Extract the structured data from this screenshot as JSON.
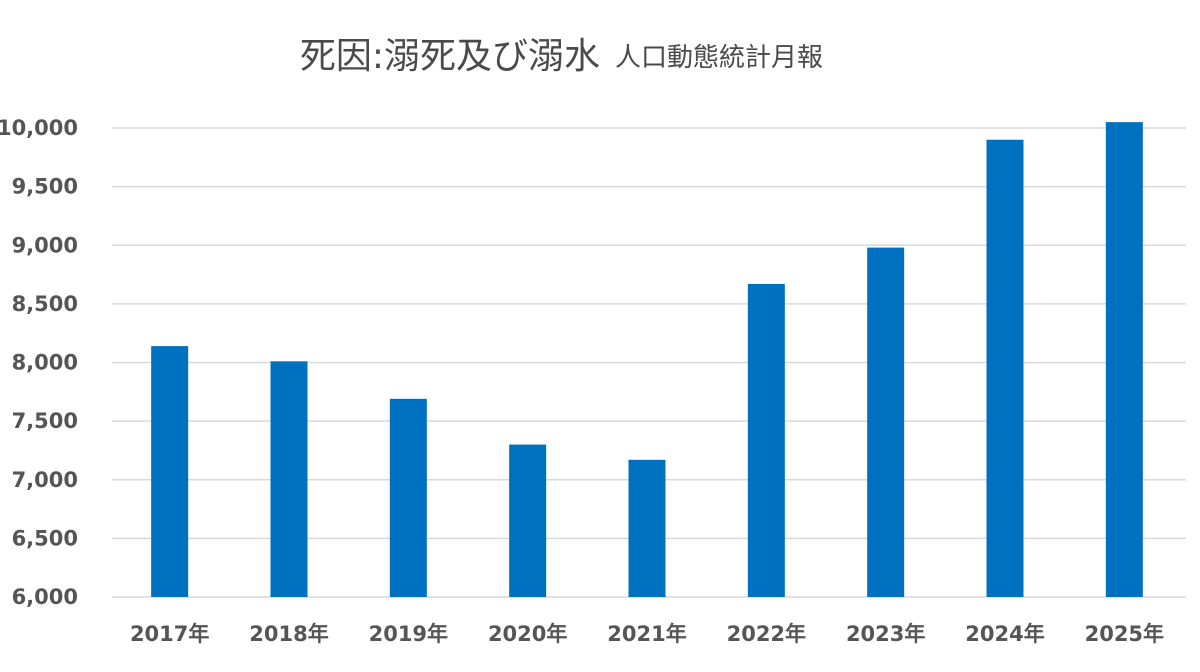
{
  "chart_data": {
    "type": "bar",
    "title": "死因:溺死及び溺水",
    "subtitle": "人口動態統計月報",
    "xlabel": "",
    "ylabel": "",
    "categories": [
      "2017年",
      "2018年",
      "2019年",
      "2020年",
      "2021年",
      "2022年",
      "2023年",
      "2024年",
      "2025年"
    ],
    "series": [
      {
        "values": [
          8140,
          8010,
          7690,
          7300,
          7170,
          8670,
          8980,
          9900,
          10050
        ]
      }
    ],
    "ylim": [
      6000,
      10000
    ],
    "yticks": [
      6000,
      6500,
      7000,
      7500,
      8000,
      8500,
      9000,
      9500,
      10000
    ],
    "ytick_labels": [
      "6,000",
      "6,500",
      "7,000",
      "7,500",
      "8,000",
      "8,500",
      "9,000",
      "9,500",
      "10,000"
    ],
    "grid": true,
    "legend": "none",
    "colors": {
      "bar": "#0070c0",
      "grid": "#d9d9d9",
      "text": "#555555",
      "title": "#4a4a4a"
    }
  }
}
